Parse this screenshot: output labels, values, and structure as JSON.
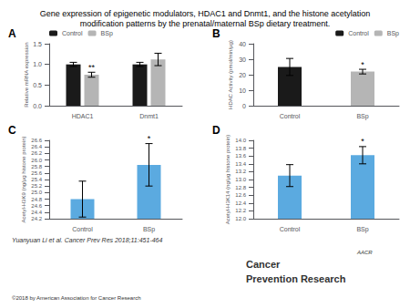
{
  "title": "Gene expression of epigenetic modulators, HDAC1 and Dnmt1, and the histone acetylation\nmodification patterns by the prenatal/maternal BSp dietary treatment.",
  "chart_data": [
    {
      "type": "bar",
      "title": "A",
      "categories": [
        "HDAC1",
        "Dnmt1"
      ],
      "series": [
        {
          "name": "Control",
          "color": "#1a1a1a",
          "values": [
            1.0,
            1.0
          ],
          "errors": [
            0.05,
            0.05
          ]
        },
        {
          "name": "BSp",
          "color": "#b5b5b5",
          "values": [
            0.75,
            1.12
          ],
          "errors": [
            0.06,
            0.15
          ]
        }
      ],
      "ylabel": "Relative mRNA expression",
      "ylim": [
        0,
        1.5
      ],
      "yticks": [
        {
          "value": 0,
          "label": "0.0"
        },
        0.5,
        {
          "value": 1,
          "label": "1.0"
        },
        1.5
      ],
      "grid": false,
      "legend": "upper left",
      "annotations": [
        {
          "text": "**",
          "category": "HDAC1",
          "series": "BSp"
        }
      ]
    },
    {
      "type": "bar",
      "title": "B",
      "categories": [
        "Control",
        "BSp"
      ],
      "series": [
        {
          "name": "Control",
          "color": "#1a1a1a",
          "values": [
            25.0,
            null
          ],
          "errors": [
            5.5,
            null
          ]
        },
        {
          "name": "BSp",
          "color": "#b5b5b5",
          "values": [
            null,
            22.0
          ],
          "errors": [
            null,
            1.5
          ]
        }
      ],
      "ylabel": "HDAC Activity (pmol/min/μg)",
      "ylim": [
        0,
        40
      ],
      "yticks": [
        0,
        10,
        20,
        30,
        40
      ],
      "grid": false,
      "legend": "upper right",
      "annotations": [
        {
          "text": "*",
          "category": "BSp",
          "series": "BSp"
        }
      ]
    },
    {
      "type": "bar",
      "title": "C",
      "categories": [
        "Control",
        "BSp"
      ],
      "values": [
        24.8,
        25.85
      ],
      "errors": [
        0.55,
        0.65
      ],
      "color": "#5baae0",
      "ylabel": "Acetyl-H3K9 (ng/μg histone protein)",
      "ylim": [
        24.2,
        26.6
      ],
      "yticks": [
        24.2,
        24.4,
        24.6,
        24.8,
        {
          "value": 25,
          "label": "25.0"
        },
        25.2,
        25.4,
        25.6,
        25.8,
        {
          "value": 26,
          "label": "26.0"
        },
        26.2,
        26.4,
        26.6
      ],
      "grid": false,
      "annotations": [
        {
          "text": "*",
          "category": "BSp"
        }
      ]
    },
    {
      "type": "bar",
      "title": "D",
      "categories": [
        "Control",
        "BSp"
      ],
      "values": [
        13.1,
        13.62
      ],
      "errors": [
        0.28,
        0.22
      ],
      "color": "#5baae0",
      "ylabel": "Acetyl-H3K14 (ng/μg histone protein)",
      "ylim": [
        12,
        14
      ],
      "yticks": [
        {
          "value": 12,
          "label": "12.0"
        },
        12.2,
        12.4,
        12.6,
        12.8,
        {
          "value": 13,
          "label": "13.0"
        },
        13.2,
        13.4,
        13.6,
        13.8,
        {
          "value": 14,
          "label": "14.0"
        }
      ],
      "grid": false,
      "annotations": [
        {
          "text": "*",
          "category": "BSp"
        }
      ]
    }
  ],
  "annotations": [
    {
      "text": "Yuanyuan Li et al. Cancer Prev Res 2018;11:451-464"
    },
    {
      "text": "©2018 by American Association for Cancer Research"
    },
    {
      "text": "Cancer"
    },
    {
      "text": "Prevention Research"
    },
    {
      "text": "AACR"
    }
  ]
}
